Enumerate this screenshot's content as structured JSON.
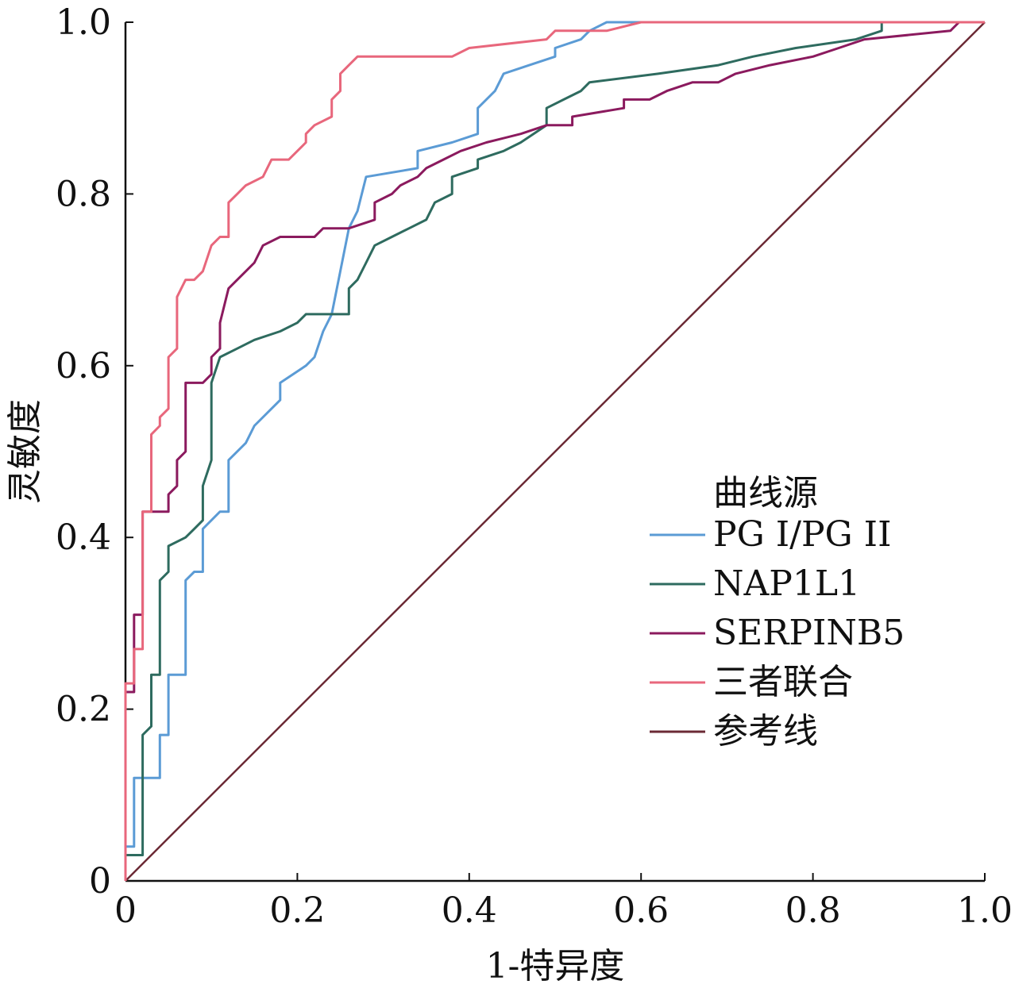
{
  "chart_data": {
    "type": "line",
    "xlabel": "1-特异度",
    "ylabel": "灵敏度",
    "xlim": [
      0,
      1
    ],
    "ylim": [
      0,
      1
    ],
    "x_ticks": [
      "0",
      "0.2",
      "0.4",
      "0.6",
      "0.8",
      "1.0"
    ],
    "y_ticks": [
      "0",
      "0.2",
      "0.4",
      "0.6",
      "0.8",
      "1.0"
    ],
    "grid": false,
    "legend": {
      "title": "曲线源",
      "position": "bottom-right"
    },
    "series": [
      {
        "name": "PG I/PG II",
        "color": "#5b9bd5",
        "points": [
          [
            0,
            0
          ],
          [
            0,
            0.04
          ],
          [
            0.01,
            0.04
          ],
          [
            0.01,
            0.12
          ],
          [
            0.04,
            0.12
          ],
          [
            0.04,
            0.17
          ],
          [
            0.05,
            0.17
          ],
          [
            0.05,
            0.24
          ],
          [
            0.07,
            0.24
          ],
          [
            0.07,
            0.35
          ],
          [
            0.08,
            0.36
          ],
          [
            0.09,
            0.36
          ],
          [
            0.09,
            0.41
          ],
          [
            0.1,
            0.42
          ],
          [
            0.11,
            0.43
          ],
          [
            0.12,
            0.43
          ],
          [
            0.12,
            0.49
          ],
          [
            0.14,
            0.51
          ],
          [
            0.15,
            0.53
          ],
          [
            0.17,
            0.55
          ],
          [
            0.18,
            0.56
          ],
          [
            0.18,
            0.58
          ],
          [
            0.21,
            0.6
          ],
          [
            0.22,
            0.61
          ],
          [
            0.23,
            0.64
          ],
          [
            0.24,
            0.66
          ],
          [
            0.25,
            0.71
          ],
          [
            0.26,
            0.76
          ],
          [
            0.27,
            0.78
          ],
          [
            0.28,
            0.82
          ],
          [
            0.34,
            0.83
          ],
          [
            0.34,
            0.85
          ],
          [
            0.38,
            0.86
          ],
          [
            0.41,
            0.87
          ],
          [
            0.41,
            0.9
          ],
          [
            0.43,
            0.92
          ],
          [
            0.44,
            0.94
          ],
          [
            0.47,
            0.95
          ],
          [
            0.5,
            0.96
          ],
          [
            0.5,
            0.97
          ],
          [
            0.53,
            0.98
          ],
          [
            0.54,
            0.99
          ],
          [
            0.56,
            1.0
          ],
          [
            1.0,
            1.0
          ]
        ]
      },
      {
        "name": "NAP1L1",
        "color": "#2e6b5f",
        "points": [
          [
            0,
            0
          ],
          [
            0,
            0.03
          ],
          [
            0.02,
            0.03
          ],
          [
            0.02,
            0.17
          ],
          [
            0.03,
            0.18
          ],
          [
            0.03,
            0.24
          ],
          [
            0.04,
            0.24
          ],
          [
            0.04,
            0.35
          ],
          [
            0.05,
            0.36
          ],
          [
            0.05,
            0.39
          ],
          [
            0.07,
            0.4
          ],
          [
            0.08,
            0.41
          ],
          [
            0.09,
            0.42
          ],
          [
            0.09,
            0.46
          ],
          [
            0.1,
            0.49
          ],
          [
            0.1,
            0.58
          ],
          [
            0.11,
            0.61
          ],
          [
            0.13,
            0.62
          ],
          [
            0.15,
            0.63
          ],
          [
            0.18,
            0.64
          ],
          [
            0.2,
            0.65
          ],
          [
            0.21,
            0.66
          ],
          [
            0.26,
            0.66
          ],
          [
            0.26,
            0.69
          ],
          [
            0.27,
            0.7
          ],
          [
            0.28,
            0.72
          ],
          [
            0.29,
            0.74
          ],
          [
            0.31,
            0.75
          ],
          [
            0.33,
            0.76
          ],
          [
            0.35,
            0.77
          ],
          [
            0.36,
            0.79
          ],
          [
            0.38,
            0.8
          ],
          [
            0.38,
            0.82
          ],
          [
            0.41,
            0.83
          ],
          [
            0.41,
            0.84
          ],
          [
            0.44,
            0.85
          ],
          [
            0.46,
            0.86
          ],
          [
            0.49,
            0.88
          ],
          [
            0.49,
            0.9
          ],
          [
            0.51,
            0.91
          ],
          [
            0.53,
            0.92
          ],
          [
            0.54,
            0.93
          ],
          [
            0.62,
            0.94
          ],
          [
            0.69,
            0.95
          ],
          [
            0.73,
            0.96
          ],
          [
            0.78,
            0.97
          ],
          [
            0.85,
            0.98
          ],
          [
            0.88,
            0.99
          ],
          [
            0.88,
            1.0
          ],
          [
            1.0,
            1.0
          ]
        ]
      },
      {
        "name": "SERPINB5",
        "color": "#8b1a5e",
        "points": [
          [
            0,
            0
          ],
          [
            0,
            0.22
          ],
          [
            0.01,
            0.22
          ],
          [
            0.01,
            0.31
          ],
          [
            0.02,
            0.31
          ],
          [
            0.02,
            0.43
          ],
          [
            0.05,
            0.43
          ],
          [
            0.05,
            0.45
          ],
          [
            0.06,
            0.46
          ],
          [
            0.06,
            0.49
          ],
          [
            0.07,
            0.5
          ],
          [
            0.07,
            0.58
          ],
          [
            0.09,
            0.58
          ],
          [
            0.1,
            0.59
          ],
          [
            0.1,
            0.61
          ],
          [
            0.11,
            0.62
          ],
          [
            0.11,
            0.65
          ],
          [
            0.12,
            0.69
          ],
          [
            0.13,
            0.7
          ],
          [
            0.14,
            0.71
          ],
          [
            0.15,
            0.72
          ],
          [
            0.16,
            0.74
          ],
          [
            0.18,
            0.75
          ],
          [
            0.22,
            0.75
          ],
          [
            0.23,
            0.76
          ],
          [
            0.26,
            0.76
          ],
          [
            0.29,
            0.77
          ],
          [
            0.29,
            0.79
          ],
          [
            0.31,
            0.8
          ],
          [
            0.32,
            0.81
          ],
          [
            0.34,
            0.82
          ],
          [
            0.35,
            0.83
          ],
          [
            0.37,
            0.84
          ],
          [
            0.39,
            0.85
          ],
          [
            0.42,
            0.86
          ],
          [
            0.46,
            0.87
          ],
          [
            0.49,
            0.88
          ],
          [
            0.52,
            0.88
          ],
          [
            0.52,
            0.89
          ],
          [
            0.58,
            0.9
          ],
          [
            0.58,
            0.91
          ],
          [
            0.61,
            0.91
          ],
          [
            0.63,
            0.92
          ],
          [
            0.66,
            0.93
          ],
          [
            0.69,
            0.93
          ],
          [
            0.71,
            0.94
          ],
          [
            0.75,
            0.95
          ],
          [
            0.8,
            0.96
          ],
          [
            0.83,
            0.97
          ],
          [
            0.86,
            0.98
          ],
          [
            0.96,
            0.99
          ],
          [
            0.97,
            1.0
          ],
          [
            1.0,
            1.0
          ]
        ]
      },
      {
        "name": "三者联合",
        "color": "#e8677c",
        "points": [
          [
            0,
            0
          ],
          [
            0,
            0.23
          ],
          [
            0.01,
            0.23
          ],
          [
            0.01,
            0.27
          ],
          [
            0.02,
            0.27
          ],
          [
            0.02,
            0.43
          ],
          [
            0.03,
            0.43
          ],
          [
            0.03,
            0.52
          ],
          [
            0.04,
            0.53
          ],
          [
            0.04,
            0.54
          ],
          [
            0.05,
            0.55
          ],
          [
            0.05,
            0.61
          ],
          [
            0.06,
            0.62
          ],
          [
            0.06,
            0.68
          ],
          [
            0.07,
            0.7
          ],
          [
            0.08,
            0.7
          ],
          [
            0.09,
            0.71
          ],
          [
            0.1,
            0.74
          ],
          [
            0.11,
            0.75
          ],
          [
            0.12,
            0.75
          ],
          [
            0.12,
            0.79
          ],
          [
            0.13,
            0.8
          ],
          [
            0.14,
            0.81
          ],
          [
            0.16,
            0.82
          ],
          [
            0.17,
            0.84
          ],
          [
            0.19,
            0.84
          ],
          [
            0.2,
            0.85
          ],
          [
            0.21,
            0.86
          ],
          [
            0.21,
            0.87
          ],
          [
            0.22,
            0.88
          ],
          [
            0.24,
            0.89
          ],
          [
            0.24,
            0.91
          ],
          [
            0.25,
            0.92
          ],
          [
            0.25,
            0.94
          ],
          [
            0.26,
            0.95
          ],
          [
            0.27,
            0.96
          ],
          [
            0.38,
            0.96
          ],
          [
            0.4,
            0.97
          ],
          [
            0.49,
            0.98
          ],
          [
            0.5,
            0.99
          ],
          [
            0.56,
            0.99
          ],
          [
            0.6,
            1.0
          ],
          [
            1.0,
            1.0
          ]
        ]
      },
      {
        "name": "参考线",
        "color": "#6b2a35",
        "points": [
          [
            0,
            0
          ],
          [
            1,
            1
          ]
        ]
      }
    ]
  }
}
